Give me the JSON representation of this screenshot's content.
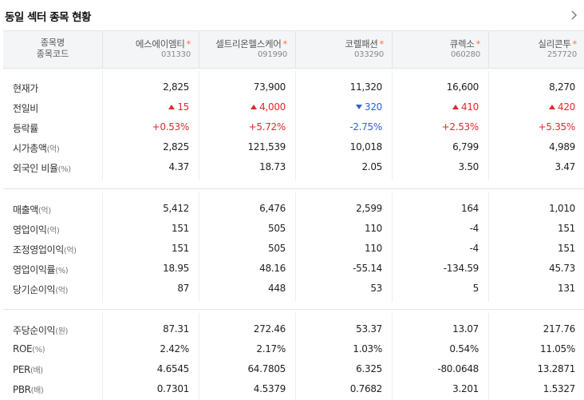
{
  "title": "동일 섹터 종목 현황",
  "more_icon": "chevron-right-icon",
  "header_label": {
    "line1": "종목명",
    "line2": "종목코드"
  },
  "companies": [
    {
      "name": "에스에이엠티",
      "code": "031330"
    },
    {
      "name": "셀트리온헬스케어",
      "code": "091990"
    },
    {
      "name": "코렐패션",
      "code": "033290"
    },
    {
      "name": "큐렉소",
      "code": "060280"
    },
    {
      "name": "실리콘투",
      "code": "257720"
    }
  ],
  "star": "*",
  "sections": [
    {
      "rows": [
        {
          "label": "현재가",
          "unit": "",
          "values": [
            "2,825",
            "73,900",
            "11,320",
            "16,600",
            "8,270"
          ]
        },
        {
          "label": "전일비",
          "unit": "",
          "values": [
            "15",
            "4,000",
            "320",
            "410",
            "420"
          ],
          "directions": [
            "up",
            "up",
            "down",
            "up",
            "up"
          ]
        },
        {
          "label": "등락률",
          "unit": "",
          "values": [
            "+0.53%",
            "+5.72%",
            "-2.75%",
            "+2.53%",
            "+5.35%"
          ],
          "directions": [
            "up",
            "up",
            "down",
            "up",
            "up"
          ]
        },
        {
          "label": "시가총액",
          "unit": "(억)",
          "values": [
            "2,825",
            "121,539",
            "10,018",
            "6,799",
            "4,989"
          ]
        },
        {
          "label": "외국인 비율",
          "unit": "(%)",
          "values": [
            "4.37",
            "18.73",
            "2.05",
            "3.50",
            "3.47"
          ]
        }
      ]
    },
    {
      "rows": [
        {
          "label": "매출액",
          "unit": "(억)",
          "values": [
            "5,412",
            "6,476",
            "2,599",
            "164",
            "1,010"
          ]
        },
        {
          "label": "영업이익",
          "unit": "(억)",
          "values": [
            "151",
            "505",
            "110",
            "-4",
            "151"
          ]
        },
        {
          "label": "조정영업이익",
          "unit": "(억)",
          "values": [
            "151",
            "505",
            "110",
            "-4",
            "151"
          ]
        },
        {
          "label": "영업이익률",
          "unit": "(%)",
          "values": [
            "18.95",
            "48.16",
            "-55.14",
            "-134.59",
            "45.73"
          ]
        },
        {
          "label": "당기순이익",
          "unit": "(억)",
          "values": [
            "87",
            "448",
            "53",
            "5",
            "131"
          ]
        }
      ]
    },
    {
      "rows": [
        {
          "label": "주당순이익",
          "unit": "(원)",
          "values": [
            "87.31",
            "272.46",
            "53.37",
            "13.07",
            "217.76"
          ]
        },
        {
          "label": "ROE",
          "unit": "(%)",
          "values": [
            "2.42%",
            "2.17%",
            "1.03%",
            "0.54%",
            "11.05%"
          ]
        },
        {
          "label": "PER",
          "unit": "(배)",
          "values": [
            "4.6545",
            "64.7805",
            "6.325",
            "-80.0648",
            "13.2871"
          ]
        },
        {
          "label": "PBR",
          "unit": "(배)",
          "values": [
            "0.7301",
            "4.5379",
            "0.7682",
            "3.201",
            "1.5327"
          ]
        }
      ]
    }
  ],
  "colors": {
    "up": "#e5262d",
    "down": "#2c63d4",
    "star": "#f07d3a",
    "header_bg": "#f4f5f7"
  }
}
